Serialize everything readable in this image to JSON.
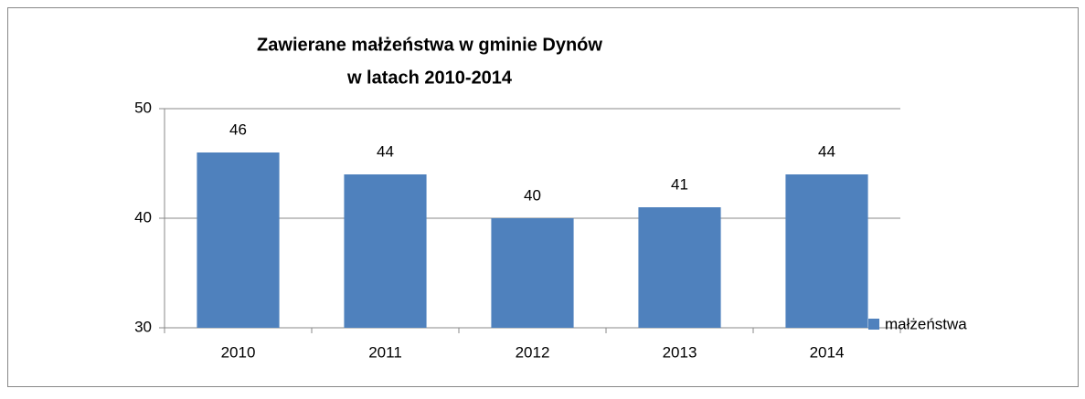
{
  "chart_data": {
    "type": "bar",
    "title": [
      "Zawierane małżeństwa w gminie Dynów",
      "w latach 2010-2014"
    ],
    "categories": [
      "2010",
      "2011",
      "2012",
      "2013",
      "2014"
    ],
    "series": [
      {
        "name": "małżeństwa",
        "color": "#4f81bd",
        "values": [
          46,
          44,
          40,
          41,
          44
        ]
      }
    ],
    "ylim": [
      30,
      50
    ],
    "yticks": [
      30,
      40,
      50
    ],
    "grid": true,
    "legend": "right",
    "data_labels": true
  }
}
